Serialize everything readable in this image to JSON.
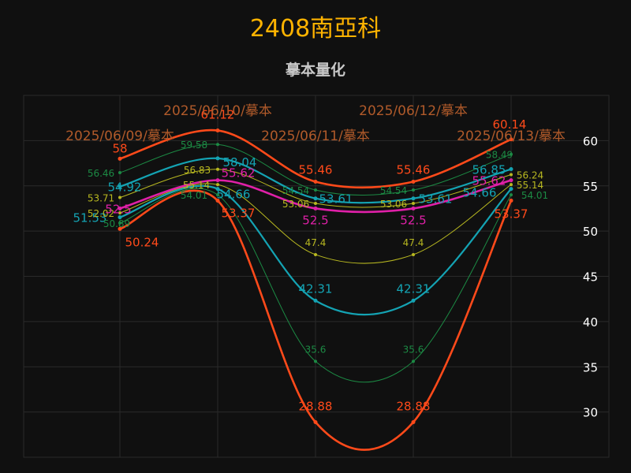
{
  "colors": {
    "background": "#101010",
    "grid": "#2a2a2a",
    "title": "#ffb300",
    "subtitle": "#c8c8c8",
    "axis_text": "#ffffff",
    "date_label": "#b05a2a",
    "s_red": "#ff4a1a",
    "s_teal": "#14a3b3",
    "s_green": "#1c8a44",
    "s_yellow": "#b8b820",
    "s_magenta": "#e020a8"
  },
  "chart_data": {
    "type": "line",
    "title": "2408南亞科",
    "subtitle": "摹本量化",
    "dates": [
      "2025/06/09/摹本",
      "2025/06/10/摹本",
      "2025/06/11/摹本",
      "2025/06/12/摹本",
      "2025/06/13/摹本"
    ],
    "ylim": [
      25,
      65
    ],
    "yticks": [
      "30",
      "35",
      "40",
      "45",
      "50",
      "55",
      "60"
    ],
    "grid": true,
    "series": [
      {
        "color": "#ff4a1a",
        "width": 2.6,
        "values": [
          58,
          61.12,
          55.46,
          55.46,
          60.14
        ],
        "labels": [
          "58",
          "61.12",
          "55.46",
          "55.46",
          "60.14"
        ]
      },
      {
        "color": "#ff4a1a",
        "width": 2.6,
        "values": [
          50.24,
          53.37,
          28.88,
          28.88,
          53.37
        ],
        "labels": [
          "50.24",
          "53.37",
          "28.88",
          "28.88",
          "53.37"
        ]
      },
      {
        "color": "#14a3b3",
        "width": 2.2,
        "values": [
          54.92,
          58.04,
          53.61,
          53.61,
          56.85
        ],
        "labels": [
          "54.92",
          "58.04",
          "53.61",
          "53.61",
          "56.85"
        ]
      },
      {
        "color": "#14a3b3",
        "width": 2.2,
        "values": [
          51.53,
          54.66,
          42.31,
          42.31,
          54.66
        ],
        "labels": [
          "51.53",
          "54.66",
          "42.31",
          "42.31",
          "54.66"
        ]
      },
      {
        "color": "#1c8a44",
        "width": 1,
        "values": [
          56.46,
          59.58,
          54.54,
          54.54,
          58.49
        ],
        "labels": [
          "56.46",
          "59.58",
          "54.54",
          "54.54",
          "58.49"
        ]
      },
      {
        "color": "#1c8a44",
        "width": 1,
        "values": [
          50.89,
          54.01,
          35.6,
          35.6,
          54.01
        ],
        "labels": [
          "50.89",
          "54.01",
          "35.6",
          "35.6",
          "54.01"
        ]
      },
      {
        "color": "#b8b820",
        "width": 1,
        "values": [
          53.71,
          56.83,
          53.06,
          53.06,
          56.24
        ],
        "labels": [
          "53.71",
          "56.83",
          "53.06",
          "53.06",
          "56.24"
        ]
      },
      {
        "color": "#b8b820",
        "width": 1,
        "values": [
          52.02,
          55.14,
          47.4,
          47.4,
          55.14
        ],
        "labels": [
          "52.02",
          "55.14",
          "47.4",
          "47.4",
          "55.14"
        ]
      },
      {
        "color": "#e020a8",
        "width": 2.6,
        "values": [
          52.5,
          55.62,
          52.5,
          52.5,
          55.62
        ],
        "labels": [
          "52.5",
          "55.62",
          "52.5",
          "52.5",
          "55.62"
        ]
      }
    ]
  }
}
